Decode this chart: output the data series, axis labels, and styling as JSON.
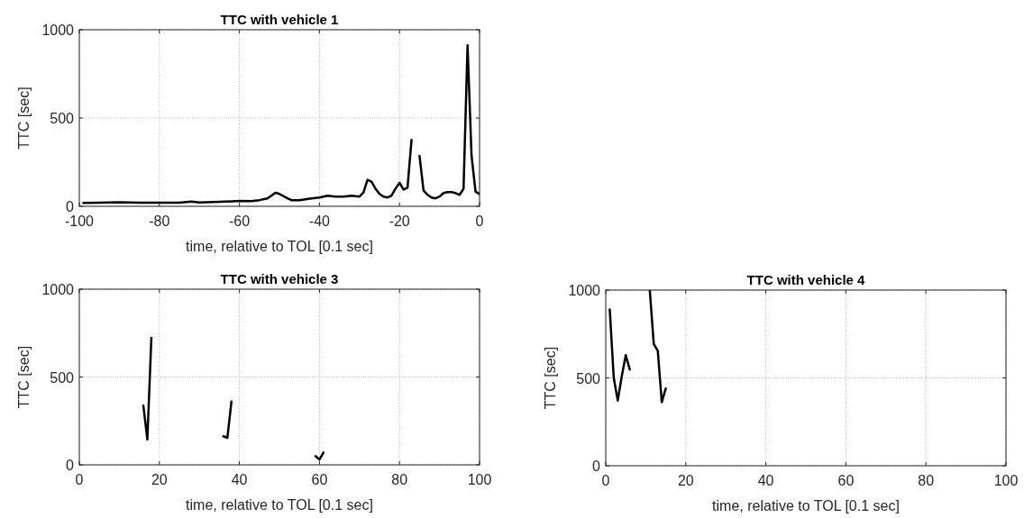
{
  "chart_data": [
    {
      "type": "line",
      "title": "TTC with vehicle 1",
      "xlabel": "time, relative to TOL [0.1 sec]",
      "ylabel": "TTC [sec]",
      "xlim": [
        -100,
        0
      ],
      "ylim": [
        0,
        1000
      ],
      "xticks": [
        -100,
        -80,
        -60,
        -40,
        -20,
        0
      ],
      "yticks": [
        0,
        500,
        1000
      ],
      "grid": true,
      "series": [
        {
          "color": "#000000",
          "x": [
            -99,
            -95,
            -90,
            -85,
            -80,
            -75,
            -72,
            -70,
            -65,
            -60,
            -57,
            -55,
            -53,
            -51,
            -50,
            -48,
            -47,
            -45,
            -42,
            -40,
            -38,
            -36,
            -34,
            -32,
            -30,
            -29,
            -28,
            -27,
            -26,
            -25,
            -24,
            -23,
            -22,
            -21,
            -20,
            -19,
            -18,
            -17,
            -16,
            -15,
            -14,
            -13,
            -12,
            -11,
            -10,
            -9,
            -8,
            -7,
            -6,
            -5,
            -4,
            -3,
            -2,
            -1,
            0
          ],
          "values": [
            19,
            21,
            23,
            20,
            20,
            20,
            27,
            22,
            25,
            30,
            29,
            35,
            45,
            77,
            70,
            45,
            35,
            35,
            45,
            50,
            60,
            55,
            55,
            60,
            55,
            78,
            150,
            140,
            100,
            70,
            55,
            50,
            60,
            100,
            133,
            95,
            105,
            376,
            null,
            286,
            90,
            65,
            50,
            45,
            55,
            75,
            80,
            80,
            75,
            65,
            99,
            912,
            286,
            82,
            70
          ]
        }
      ]
    },
    {
      "type": "line",
      "title": "TTC with vehicle 3",
      "xlabel": "time, relative to TOL [0.1 sec]",
      "ylabel": "TTC [sec]",
      "xlim": [
        0,
        100
      ],
      "ylim": [
        0,
        1000
      ],
      "xticks": [
        0,
        20,
        40,
        60,
        80,
        100
      ],
      "yticks": [
        0,
        500,
        1000
      ],
      "grid": true,
      "series": [
        {
          "color": "#000000",
          "x": [
            16,
            17,
            18,
            27,
            36,
            37,
            38,
            48,
            59,
            60,
            61
          ],
          "values": [
            337,
            144,
            723,
            null,
            163,
            154,
            360,
            null,
            50,
            30,
            70
          ]
        }
      ]
    },
    {
      "type": "line",
      "title": "TTC with vehicle 4",
      "xlabel": "time, relative to TOL [0.1 sec]",
      "ylabel": "TTC [sec]",
      "xlim": [
        0,
        100
      ],
      "ylim": [
        0,
        1000
      ],
      "xticks": [
        0,
        20,
        40,
        60,
        80,
        100
      ],
      "yticks": [
        0,
        500,
        1000
      ],
      "grid": true,
      "series": [
        {
          "color": "#000000",
          "x": [
            1,
            2,
            3,
            4,
            5,
            6,
            8,
            11,
            12,
            13,
            14,
            15
          ],
          "values": [
            890,
            500,
            371,
            509,
            629,
            548,
            null,
            1000,
            693,
            655,
            362,
            440
          ]
        }
      ]
    }
  ]
}
